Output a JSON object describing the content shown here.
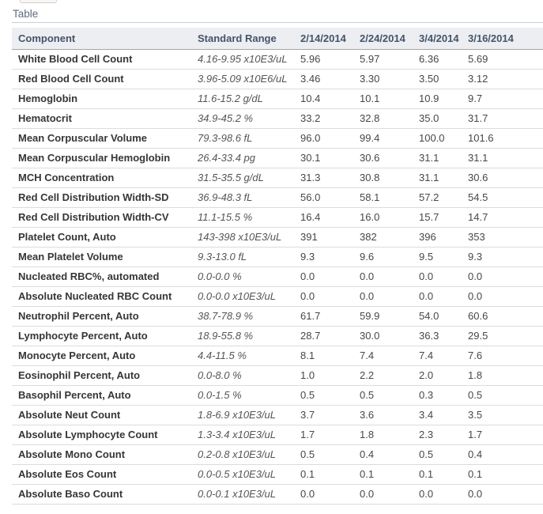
{
  "tab": {
    "label": "Table"
  },
  "colors": {
    "header_bg": "#edeef1",
    "header_text": "#44546a",
    "tab_text": "#5d6d7e",
    "tab_underline": "#c7cfd9",
    "header_border": "#a6a6a6",
    "row_border": "#dcdcdc",
    "component_text": "#363636",
    "range_text": "#555555",
    "value_text": "#474747"
  },
  "table": {
    "columns": [
      "Component",
      "Standard Range",
      "2/14/2014",
      "2/24/2014",
      "3/4/2014",
      "3/16/2014"
    ],
    "rows": [
      {
        "component": "White Blood Cell Count",
        "range": "4.16-9.95 x10E3/uL",
        "values": [
          "5.96",
          "5.97",
          "6.36",
          "5.69"
        ]
      },
      {
        "component": "Red Blood Cell Count",
        "range": "3.96-5.09 x10E6/uL",
        "values": [
          "3.46",
          "3.30",
          "3.50",
          "3.12"
        ]
      },
      {
        "component": "Hemoglobin",
        "range": "11.6-15.2 g/dL",
        "values": [
          "10.4",
          "10.1",
          "10.9",
          "9.7"
        ]
      },
      {
        "component": "Hematocrit",
        "range": "34.9-45.2 %",
        "values": [
          "33.2",
          "32.8",
          "35.0",
          "31.7"
        ]
      },
      {
        "component": "Mean Corpuscular Volume",
        "range": "79.3-98.6 fL",
        "values": [
          "96.0",
          "99.4",
          "100.0",
          "101.6"
        ]
      },
      {
        "component": "Mean Corpuscular Hemoglobin",
        "range": "26.4-33.4 pg",
        "values": [
          "30.1",
          "30.6",
          "31.1",
          "31.1"
        ]
      },
      {
        "component": "MCH Concentration",
        "range": "31.5-35.5 g/dL",
        "values": [
          "31.3",
          "30.8",
          "31.1",
          "30.6"
        ]
      },
      {
        "component": "Red Cell Distribution Width-SD",
        "range": "36.9-48.3 fL",
        "values": [
          "56.0",
          "58.1",
          "57.2",
          "54.5"
        ]
      },
      {
        "component": "Red Cell Distribution Width-CV",
        "range": "11.1-15.5 %",
        "values": [
          "16.4",
          "16.0",
          "15.7",
          "14.7"
        ]
      },
      {
        "component": "Platelet Count, Auto",
        "range": "143-398 x10E3/uL",
        "values": [
          "391",
          "382",
          "396",
          "353"
        ]
      },
      {
        "component": "Mean Platelet Volume",
        "range": "9.3-13.0 fL",
        "values": [
          "9.3",
          "9.6",
          "9.5",
          "9.3"
        ]
      },
      {
        "component": "Nucleated RBC%, automated",
        "range": "0.0-0.0 %",
        "values": [
          "0.0",
          "0.0",
          "0.0",
          "0.0"
        ]
      },
      {
        "component": "Absolute Nucleated RBC Count",
        "range": "0.0-0.0 x10E3/uL",
        "values": [
          "0.0",
          "0.0",
          "0.0",
          "0.0"
        ]
      },
      {
        "component": "Neutrophil Percent, Auto",
        "range": "38.7-78.9 %",
        "values": [
          "61.7",
          "59.9",
          "54.0",
          "60.6"
        ]
      },
      {
        "component": "Lymphocyte Percent, Auto",
        "range": "18.9-55.8 %",
        "values": [
          "28.7",
          "30.0",
          "36.3",
          "29.5"
        ]
      },
      {
        "component": "Monocyte Percent, Auto",
        "range": "4.4-11.5 %",
        "values": [
          "8.1",
          "7.4",
          "7.4",
          "7.6"
        ]
      },
      {
        "component": "Eosinophil Percent, Auto",
        "range": "0.0-8.0 %",
        "values": [
          "1.0",
          "2.2",
          "2.0",
          "1.8"
        ]
      },
      {
        "component": "Basophil Percent, Auto",
        "range": "0.0-1.5 %",
        "values": [
          "0.5",
          "0.5",
          "0.3",
          "0.5"
        ]
      },
      {
        "component": "Absolute Neut Count",
        "range": "1.8-6.9 x10E3/uL",
        "values": [
          "3.7",
          "3.6",
          "3.4",
          "3.5"
        ]
      },
      {
        "component": "Absolute Lymphocyte Count",
        "range": "1.3-3.4 x10E3/uL",
        "values": [
          "1.7",
          "1.8",
          "2.3",
          "1.7"
        ]
      },
      {
        "component": "Absolute Mono Count",
        "range": "0.2-0.8 x10E3/uL",
        "values": [
          "0.5",
          "0.4",
          "0.5",
          "0.4"
        ]
      },
      {
        "component": "Absolute Eos Count",
        "range": "0.0-0.5 x10E3/uL",
        "values": [
          "0.1",
          "0.1",
          "0.1",
          "0.1"
        ]
      },
      {
        "component": "Absolute Baso Count",
        "range": "0.0-0.1 x10E3/uL",
        "values": [
          "0.0",
          "0.0",
          "0.0",
          "0.0"
        ]
      }
    ]
  }
}
